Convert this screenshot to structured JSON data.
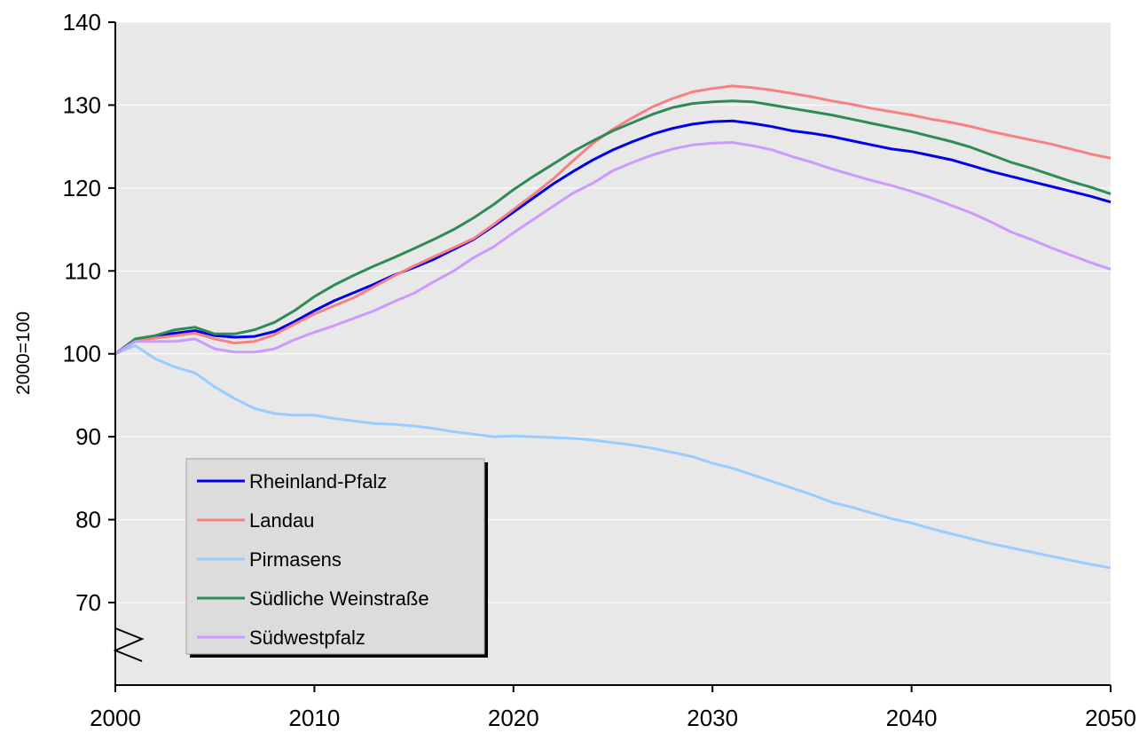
{
  "chart_data": {
    "type": "line",
    "title": "",
    "xlabel": "",
    "ylabel": "2000=100",
    "xlim": [
      2000,
      2050
    ],
    "ylim": [
      70,
      140
    ],
    "xticks": [
      "2000",
      "2010",
      "2020",
      "2030",
      "2040",
      "2050"
    ],
    "yticks": [
      "70",
      "80",
      "90",
      "100",
      "110",
      "120",
      "130",
      "140"
    ],
    "axis_break": "y-axis below 70",
    "grid": "horizontal",
    "legend_position": "bottom-left",
    "x": [
      2000,
      2001,
      2002,
      2003,
      2004,
      2005,
      2006,
      2007,
      2008,
      2009,
      2010,
      2011,
      2012,
      2013,
      2014,
      2015,
      2016,
      2017,
      2018,
      2019,
      2020,
      2021,
      2022,
      2023,
      2024,
      2025,
      2026,
      2027,
      2028,
      2029,
      2030,
      2031,
      2032,
      2033,
      2034,
      2035,
      2036,
      2037,
      2038,
      2039,
      2040,
      2041,
      2042,
      2043,
      2044,
      2045,
      2046,
      2047,
      2048,
      2049,
      2050
    ],
    "series": [
      {
        "name": "Rheinland-Pfalz",
        "color": "#0000ee",
        "values": [
          100.0,
          101.7,
          102.1,
          102.5,
          102.8,
          102.2,
          102.0,
          102.1,
          102.7,
          103.9,
          105.2,
          106.4,
          107.4,
          108.4,
          109.5,
          110.4,
          111.4,
          112.6,
          113.8,
          115.4,
          117.1,
          118.8,
          120.5,
          122.0,
          123.4,
          124.6,
          125.6,
          126.5,
          127.2,
          127.7,
          128.0,
          128.1,
          127.8,
          127.4,
          126.9,
          126.6,
          126.2,
          125.7,
          125.2,
          124.7,
          124.4,
          123.9,
          123.4,
          122.7,
          122.0,
          121.4,
          120.8,
          120.2,
          119.6,
          119.0,
          118.3
        ]
      },
      {
        "name": "Landau",
        "color": "#f88080",
        "values": [
          100.0,
          101.6,
          101.9,
          102.2,
          102.5,
          101.8,
          101.3,
          101.5,
          102.3,
          103.6,
          104.8,
          105.8,
          106.8,
          108.1,
          109.4,
          110.6,
          111.7,
          112.8,
          113.9,
          115.6,
          117.4,
          119.2,
          121.1,
          123.3,
          125.4,
          127.1,
          128.5,
          129.8,
          130.8,
          131.6,
          132.0,
          132.3,
          132.1,
          131.8,
          131.4,
          131.0,
          130.5,
          130.1,
          129.6,
          129.2,
          128.8,
          128.3,
          127.9,
          127.4,
          126.8,
          126.3,
          125.8,
          125.3,
          124.7,
          124.1,
          123.6
        ]
      },
      {
        "name": "Pirmasens",
        "color": "#99ccff",
        "values": [
          100.0,
          101.0,
          99.4,
          98.4,
          97.7,
          96.0,
          94.6,
          93.4,
          92.8,
          92.6,
          92.6,
          92.2,
          91.9,
          91.6,
          91.5,
          91.3,
          91.0,
          90.6,
          90.3,
          90.0,
          90.1,
          90.0,
          89.9,
          89.8,
          89.6,
          89.3,
          89.0,
          88.6,
          88.1,
          87.6,
          86.8,
          86.2,
          85.4,
          84.6,
          83.8,
          83.0,
          82.1,
          81.5,
          80.8,
          80.1,
          79.6,
          78.9,
          78.3,
          77.7,
          77.1,
          76.6,
          76.1,
          75.6,
          75.1,
          74.6,
          74.2
        ]
      },
      {
        "name": "Südliche Weinstraße",
        "color": "#2e8b57",
        "values": [
          100.0,
          101.8,
          102.2,
          102.9,
          103.2,
          102.4,
          102.4,
          102.9,
          103.8,
          105.2,
          106.9,
          108.3,
          109.5,
          110.6,
          111.6,
          112.7,
          113.8,
          115.0,
          116.4,
          118.0,
          119.8,
          121.4,
          122.9,
          124.4,
          125.7,
          126.9,
          127.9,
          128.9,
          129.7,
          130.2,
          130.4,
          130.5,
          130.4,
          130.0,
          129.6,
          129.2,
          128.8,
          128.3,
          127.8,
          127.3,
          126.8,
          126.2,
          125.6,
          124.9,
          124.0,
          123.1,
          122.4,
          121.6,
          120.8,
          120.1,
          119.3
        ]
      },
      {
        "name": "Südwestpfalz",
        "color": "#cc99ff",
        "values": [
          100.0,
          101.5,
          101.5,
          101.5,
          101.8,
          100.6,
          100.2,
          100.2,
          100.6,
          101.7,
          102.6,
          103.4,
          104.3,
          105.2,
          106.3,
          107.3,
          108.7,
          110.0,
          111.6,
          112.9,
          114.6,
          116.2,
          117.8,
          119.4,
          120.6,
          122.1,
          123.1,
          124.0,
          124.7,
          125.2,
          125.4,
          125.5,
          125.1,
          124.6,
          123.8,
          123.1,
          122.3,
          121.6,
          120.9,
          120.3,
          119.6,
          118.8,
          117.9,
          117.0,
          115.9,
          114.7,
          113.8,
          112.8,
          111.9,
          111.0,
          110.2
        ]
      }
    ]
  }
}
